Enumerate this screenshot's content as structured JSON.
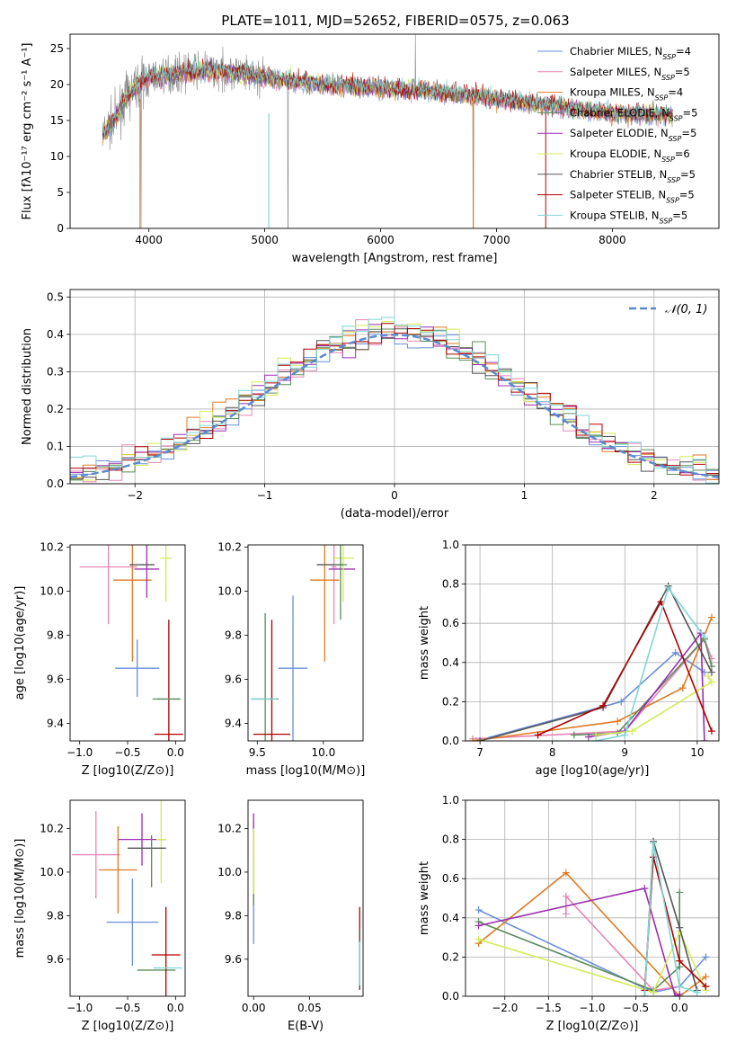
{
  "title": "PLATE=1011, MJD=52652, FIBERID=0575, z=0.063",
  "colors": {
    "chabrier_miles": "#6a8fd8",
    "salpeter_miles": "#e585b6",
    "kroupa_miles": "#e07a22",
    "chabrier_elodie": "#5b8a5b",
    "salpeter_elodie": "#9b2fae",
    "kroupa_elodie": "#d4ec5a",
    "chabrier_stelib": "#555555",
    "salpeter_stelib": "#b00000",
    "kroupa_stelib": "#7fd6d6",
    "data": "#888888",
    "normal": "#5b8bd0"
  },
  "chart_data": [
    {
      "id": "spectrum",
      "type": "line",
      "title": "PLATE=1011, MJD=52652, FIBERID=0575, z=0.063",
      "xlabel": "wavelength [Angstrom, rest frame]",
      "ylabel": "Flux [fλ10⁻¹⁷ erg cm⁻² s⁻¹ A⁻¹]",
      "xlim": [
        3320,
        8920
      ],
      "ylim": [
        0,
        27
      ],
      "xticks": [
        4000,
        5000,
        6000,
        7000,
        8000
      ],
      "yticks": [
        0,
        5,
        10,
        15,
        20,
        25
      ],
      "grid": false,
      "legend_position": "upper-right",
      "continuum": [
        [
          3600,
          13
        ],
        [
          3700,
          15
        ],
        [
          3800,
          18
        ],
        [
          3900,
          20
        ],
        [
          4000,
          21
        ],
        [
          4200,
          21.5
        ],
        [
          4500,
          22
        ],
        [
          4800,
          21.5
        ],
        [
          5000,
          21
        ],
        [
          5500,
          20
        ],
        [
          6000,
          19.5
        ],
        [
          6500,
          19
        ],
        [
          7000,
          18
        ],
        [
          7500,
          17
        ],
        [
          8000,
          16
        ],
        [
          8300,
          15.8
        ],
        [
          8520,
          15.8
        ]
      ],
      "series": [
        {
          "name": "Chabrier MILES, N_SSP=4",
          "label": "Chabrier MILES, N",
          "nssp": "4",
          "color_key": "chabrier_miles"
        },
        {
          "name": "Salpeter MILES, N_SSP=5",
          "label": "Salpeter MILES, N",
          "nssp": "5",
          "color_key": "salpeter_miles"
        },
        {
          "name": "Kroupa MILES, N_SSP=4",
          "label": "Kroupa MILES, N",
          "nssp": "4",
          "color_key": "kroupa_miles"
        },
        {
          "name": "Chabrier ELODIE, N_SSP=5",
          "label": "Chabrier ELODIE, N",
          "nssp": "5",
          "color_key": "chabrier_elodie"
        },
        {
          "name": "Salpeter ELODIE, N_SSP=5",
          "label": "Salpeter ELODIE, N",
          "nssp": "5",
          "color_key": "salpeter_elodie"
        },
        {
          "name": "Kroupa ELODIE, N_SSP=6",
          "label": "Kroupa ELODIE, N",
          "nssp": "6",
          "color_key": "kroupa_elodie"
        },
        {
          "name": "Chabrier STELIB, N_SSP=5",
          "label": "Chabrier STELIB, N",
          "nssp": "5",
          "color_key": "chabrier_stelib"
        },
        {
          "name": "Salpeter STELIB, N_SSP=5",
          "label": "Salpeter STELIB, N",
          "nssp": "5",
          "color_key": "salpeter_stelib"
        },
        {
          "name": "Kroupa STELIB, N_SSP=5",
          "label": "Kroupa STELIB, N",
          "nssp": "5",
          "color_key": "kroupa_stelib"
        }
      ]
    },
    {
      "id": "residuals",
      "type": "histogram",
      "xlabel": "(data-model)/error",
      "ylabel": "Normed distribution",
      "xlim": [
        -2.5,
        2.5
      ],
      "ylim": [
        0,
        0.52
      ],
      "xticks": [
        -2,
        -1,
        0,
        1,
        2
      ],
      "yticks": [
        0.0,
        0.1,
        0.2,
        0.3,
        0.4,
        0.5
      ],
      "grid": true,
      "legend": "𝒩(0, 1)",
      "legend_position": "upper-right",
      "bin_width": 0.1
    },
    {
      "id": "age_vs_Z",
      "type": "errorbar",
      "xlabel": "Z [log10(Z/Z⊙)]",
      "ylabel": "age [log10(age/yr)]",
      "xlim": [
        -1.1,
        0.1
      ],
      "ylim": [
        9.32,
        10.21
      ],
      "xticks": [
        -1.0,
        -0.5,
        0.0
      ],
      "yticks": [
        9.4,
        9.6,
        9.8,
        10.0,
        10.2
      ],
      "points": [
        {
          "color_key": "chabrier_miles",
          "x": -0.4,
          "xerr": 0.23,
          "y": 9.65,
          "yerr": 0.13
        },
        {
          "color_key": "salpeter_miles",
          "x": -0.7,
          "xerr": 0.3,
          "y": 10.11,
          "yerr": 0.26
        },
        {
          "color_key": "kroupa_miles",
          "x": -0.45,
          "xerr": 0.2,
          "y": 10.05,
          "yerr": 0.37
        },
        {
          "color_key": "chabrier_elodie",
          "x": -0.2,
          "xerr": 0.04,
          "y": 9.51,
          "yerr": 0.0
        },
        {
          "color_key": "salpeter_elodie",
          "x": -0.3,
          "xerr": 0.13,
          "y": 10.1,
          "yerr": 0.13
        },
        {
          "color_key": "kroupa_elodie",
          "x": -0.1,
          "xerr": 0.06,
          "y": 10.15,
          "yerr": 0.2
        },
        {
          "color_key": "chabrier_stelib",
          "x": -0.35,
          "xerr": 0.13,
          "y": 10.12,
          "yerr": 0.0
        },
        {
          "color_key": "salpeter_stelib",
          "x": -0.07,
          "xerr": 0.15,
          "y": 9.35,
          "yerr": 0.52
        },
        {
          "color_key": "kroupa_stelib",
          "x": -0.07,
          "xerr": 0.12,
          "y": 9.51,
          "yerr": 0.0
        },
        {
          "color_key": "chabrier_elodie",
          "x": -0.07,
          "xerr": 0.12,
          "y": 9.51,
          "yerr": 0.0
        }
      ]
    },
    {
      "id": "age_vs_mass",
      "type": "errorbar",
      "xlabel": "mass [log10(M/M⊙)]",
      "xlim": [
        9.43,
        10.3
      ],
      "ylim": [
        9.32,
        10.21
      ],
      "xticks": [
        9.5,
        10.0
      ],
      "yticks": [
        9.4,
        9.6,
        9.8,
        10.0,
        10.2
      ],
      "points": [
        {
          "color_key": "chabrier_miles",
          "x": 9.77,
          "xerr": 0.11,
          "y": 9.65,
          "yerr": 0.33
        },
        {
          "color_key": "salpeter_miles",
          "x": 10.08,
          "xerr": 0.02,
          "y": 10.11,
          "yerr": 0.26
        },
        {
          "color_key": "kroupa_miles",
          "x": 10.01,
          "xerr": 0.11,
          "y": 10.05,
          "yerr": 0.37
        },
        {
          "color_key": "chabrier_elodie",
          "x": 9.56,
          "xerr": 0.1,
          "y": 9.51,
          "yerr": 0.39
        },
        {
          "color_key": "salpeter_elodie",
          "x": 10.14,
          "xerr": 0.1,
          "y": 10.1,
          "yerr": 0.0
        },
        {
          "color_key": "kroupa_elodie",
          "x": 10.15,
          "xerr": 0.08,
          "y": 10.15,
          "yerr": 0.2
        },
        {
          "color_key": "chabrier_stelib",
          "x": 10.05,
          "xerr": 0.1,
          "y": 10.12,
          "yerr": 0.0
        },
        {
          "color_key": "salpeter_stelib",
          "x": 9.61,
          "xerr": 0.14,
          "y": 9.35,
          "yerr": 0.52
        },
        {
          "color_key": "kroupa_stelib",
          "x": 9.55,
          "xerr": 0.1,
          "y": 9.51,
          "yerr": 0.0
        },
        {
          "color_key": "chabrier_elodie",
          "x": 10.13,
          "xerr": 0.05,
          "y": 10.12,
          "yerr": 0.25
        }
      ]
    },
    {
      "id": "weight_vs_age",
      "type": "line",
      "xlabel": "age [log10(age/yr)]",
      "ylabel": "mass weight",
      "xlim": [
        6.8,
        10.3
      ],
      "ylim": [
        0,
        1.0
      ],
      "xticks": [
        7,
        8,
        9,
        10
      ],
      "yticks": [
        0.0,
        0.2,
        0.4,
        0.6,
        0.8,
        1.0
      ],
      "grid": true,
      "series": [
        {
          "color_key": "chabrier_miles",
          "x": [
            6.95,
            8.95,
            9.7,
            10.1
          ],
          "y": [
            0.0,
            0.2,
            0.45,
            0.35
          ]
        },
        {
          "color_key": "salpeter_miles",
          "x": [
            6.9,
            9.0,
            10.1,
            10.2
          ],
          "y": [
            0.01,
            0.05,
            0.52,
            0.42
          ]
        },
        {
          "color_key": "kroupa_miles",
          "x": [
            6.9,
            8.9,
            9.8,
            10.2
          ],
          "y": [
            0.0,
            0.1,
            0.27,
            0.63
          ]
        },
        {
          "color_key": "chabrier_elodie",
          "x": [
            8.3,
            8.9,
            10.1,
            10.2
          ],
          "y": [
            0.03,
            0.04,
            0.52,
            0.38
          ]
        },
        {
          "color_key": "salpeter_elodie",
          "x": [
            8.5,
            9.0,
            10.05,
            10.1
          ],
          "y": [
            0.02,
            0.05,
            0.55,
            0.0
          ]
        },
        {
          "color_key": "kroupa_elodie",
          "x": [
            8.6,
            9.1,
            10.2,
            10.15
          ],
          "y": [
            0.03,
            0.05,
            0.3,
            0.33
          ]
        },
        {
          "color_key": "chabrier_stelib",
          "x": [
            7.0,
            8.7,
            9.6,
            10.2
          ],
          "y": [
            0.0,
            0.17,
            0.79,
            0.35
          ]
        },
        {
          "color_key": "salpeter_stelib",
          "x": [
            7.8,
            8.7,
            9.5,
            10.2
          ],
          "y": [
            0.03,
            0.18,
            0.71,
            0.05
          ]
        },
        {
          "color_key": "kroupa_stelib",
          "x": [
            8.6,
            9.0,
            9.6,
            10.1
          ],
          "y": [
            0.0,
            0.03,
            0.78,
            0.53
          ]
        }
      ]
    },
    {
      "id": "mass_vs_Z",
      "type": "errorbar",
      "xlabel": "Z [log10(Z/Z⊙)]",
      "ylabel": "mass [log10(M/M⊙)]",
      "xlim": [
        -1.1,
        0.1
      ],
      "ylim": [
        9.43,
        10.33
      ],
      "xticks": [
        -1.0,
        -0.5,
        0.0
      ],
      "yticks": [
        9.6,
        9.8,
        10.0,
        10.2
      ],
      "points": [
        {
          "color_key": "chabrier_miles",
          "x": -0.45,
          "xerr": 0.27,
          "y": 9.77,
          "yerr": 0.2
        },
        {
          "color_key": "salpeter_miles",
          "x": -0.83,
          "xerr": 0.25,
          "y": 10.08,
          "yerr": 0.2
        },
        {
          "color_key": "kroupa_miles",
          "x": -0.6,
          "xerr": 0.2,
          "y": 10.01,
          "yerr": 0.2
        },
        {
          "color_key": "chabrier_elodie",
          "x": -0.2,
          "xerr": 0.2,
          "y": 9.55,
          "yerr": 0.0
        },
        {
          "color_key": "salpeter_elodie",
          "x": -0.35,
          "xerr": 0.25,
          "y": 10.15,
          "yerr": 0.12
        },
        {
          "color_key": "kroupa_elodie",
          "x": -0.15,
          "xerr": 0.05,
          "y": 10.15,
          "yerr": 0.2
        },
        {
          "color_key": "chabrier_stelib",
          "x": -0.3,
          "xerr": 0.2,
          "y": 10.11,
          "yerr": 0.0
        },
        {
          "color_key": "salpeter_stelib",
          "x": -0.1,
          "xerr": 0.15,
          "y": 9.62,
          "yerr": 0.22
        },
        {
          "color_key": "kroupa_stelib",
          "x": -0.08,
          "xerr": 0.15,
          "y": 9.56,
          "yerr": 0.0
        },
        {
          "color_key": "chabrier_elodie",
          "x": -0.25,
          "xerr": 0.0,
          "y": 10.05,
          "yerr": 0.12
        }
      ]
    },
    {
      "id": "mass_vs_ebv",
      "type": "errorbar",
      "xlabel": "E(B-V)",
      "xlim": [
        -0.005,
        0.098
      ],
      "ylim": [
        9.43,
        10.33
      ],
      "xticks": [
        0.0,
        0.05
      ],
      "yticks": [
        9.6,
        9.8,
        10.0,
        10.2
      ],
      "points": [
        {
          "color_key": "chabrier_miles",
          "x": 0.0,
          "xerr": 0.0,
          "y": 9.77,
          "yerr": 0.1
        },
        {
          "color_key": "salpeter_miles",
          "x": 0.0,
          "xerr": 0.0,
          "y": 10.08,
          "yerr": 0.15
        },
        {
          "color_key": "kroupa_miles",
          "x": 0.0,
          "xerr": 0.0,
          "y": 10.01,
          "yerr": 0.15
        },
        {
          "color_key": "chabrier_elodie",
          "x": 0.0,
          "xerr": 0.0,
          "y": 9.95,
          "yerr": 0.1
        },
        {
          "color_key": "salpeter_elodie",
          "x": 0.0,
          "xerr": 0.0,
          "y": 10.15,
          "yerr": 0.12
        },
        {
          "color_key": "kroupa_elodie",
          "x": 0.0,
          "xerr": 0.0,
          "y": 10.05,
          "yerr": 0.15
        },
        {
          "color_key": "salpeter_stelib",
          "x": 0.095,
          "xerr": 0.0,
          "y": 9.65,
          "yerr": 0.19
        },
        {
          "color_key": "chabrier_stelib",
          "x": 0.095,
          "xerr": 0.0,
          "y": 9.6,
          "yerr": 0.14
        },
        {
          "color_key": "kroupa_stelib",
          "x": 0.095,
          "xerr": 0.0,
          "y": 9.58,
          "yerr": 0.1
        }
      ]
    },
    {
      "id": "weight_vs_Z",
      "type": "line",
      "xlabel": "Z [log10(Z/Z⊙)]",
      "ylabel": "mass weight",
      "xlim": [
        -2.45,
        0.45
      ],
      "ylim": [
        0,
        1.0
      ],
      "xticks": [
        -2.0,
        -1.5,
        -1.0,
        -0.5,
        0.0
      ],
      "yticks": [
        0.0,
        0.2,
        0.4,
        0.6,
        0.8,
        1.0
      ],
      "grid": true,
      "series": [
        {
          "color_key": "chabrier_miles",
          "x": [
            -2.3,
            -0.3,
            0.0,
            0.3
          ],
          "y": [
            0.44,
            0.02,
            0.05,
            0.2
          ]
        },
        {
          "color_key": "salpeter_miles",
          "x": [
            -1.3,
            -1.3,
            -0.3,
            0.0
          ],
          "y": [
            0.42,
            0.51,
            0.03,
            0.05
          ]
        },
        {
          "color_key": "kroupa_miles",
          "x": [
            -2.3,
            -1.3,
            0.0,
            0.3
          ],
          "y": [
            0.27,
            0.63,
            0.0,
            0.1
          ]
        },
        {
          "color_key": "chabrier_elodie",
          "x": [
            -2.3,
            -0.3,
            0.0,
            0.0
          ],
          "y": [
            0.38,
            0.03,
            0.15,
            0.53
          ]
        },
        {
          "color_key": "salpeter_elodie",
          "x": [
            -2.3,
            -0.4,
            -0.05,
            0.0
          ],
          "y": [
            0.36,
            0.55,
            0.0,
            0.01
          ]
        },
        {
          "color_key": "kroupa_elodie",
          "x": [
            -2.3,
            -0.3,
            0.0,
            0.3
          ],
          "y": [
            0.29,
            0.02,
            0.33,
            0.03
          ]
        },
        {
          "color_key": "chabrier_stelib",
          "x": [
            -0.4,
            -0.3,
            0.0,
            0.2
          ],
          "y": [
            0.0,
            0.79,
            0.35,
            0.03
          ]
        },
        {
          "color_key": "salpeter_stelib",
          "x": [
            -0.4,
            -0.3,
            0.0,
            0.3
          ],
          "y": [
            0.03,
            0.71,
            0.18,
            0.05
          ]
        },
        {
          "color_key": "kroupa_stelib",
          "x": [
            -0.4,
            -0.3,
            0.0,
            0.2
          ],
          "y": [
            0.0,
            0.78,
            0.05,
            0.02
          ]
        }
      ]
    }
  ]
}
